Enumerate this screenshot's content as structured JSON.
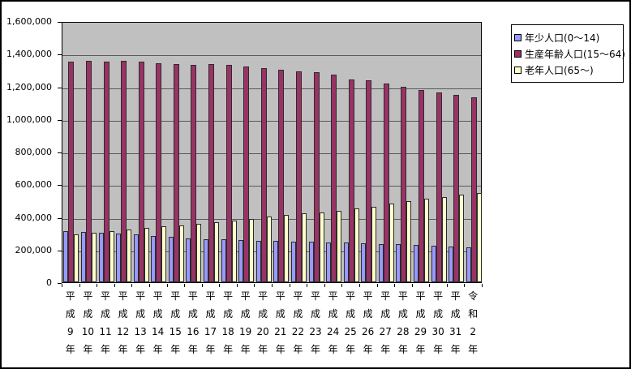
{
  "chart_data": {
    "type": "bar",
    "title": "",
    "xlabel": "",
    "ylabel": "",
    "grid": true,
    "plot_background": "#C0C0C0",
    "background": "#FFFFFF",
    "border_color": "#000000",
    "gridline_color": "#5A5A5A",
    "legend_position": "top-right",
    "categories": [
      "平成9年",
      "平成10年",
      "平成11年",
      "平成12年",
      "平成13年",
      "平成14年",
      "平成15年",
      "平成16年",
      "平成17年",
      "平成18年",
      "平成19年",
      "平成20年",
      "平成21年",
      "平成22年",
      "平成23年",
      "平成24年",
      "平成25年",
      "平成26年",
      "平成27年",
      "平成28年",
      "平成29年",
      "平成30年",
      "平成31年",
      "令和2年"
    ],
    "series": [
      {
        "name": "年少人口(0～14)",
        "color": "#9999FF",
        "values": [
          313000,
          309000,
          304000,
          300000,
          291000,
          284000,
          277000,
          270000,
          264000,
          261000,
          258000,
          255000,
          252000,
          250000,
          248000,
          245000,
          242000,
          239000,
          236000,
          232000,
          228000,
          224000,
          219000,
          212000
        ]
      },
      {
        "name": "生産年齢人口(15～64)",
        "color": "#993366",
        "values": [
          1350000,
          1357000,
          1354000,
          1359000,
          1352000,
          1344000,
          1339000,
          1334000,
          1336000,
          1330000,
          1322000,
          1312000,
          1301000,
          1291000,
          1286000,
          1271000,
          1243000,
          1236000,
          1216000,
          1196000,
          1180000,
          1162000,
          1147000,
          1132000
        ]
      },
      {
        "name": "老年人口(65～)",
        "color": "#FFFFCC",
        "values": [
          292000,
          304000,
          312000,
          322000,
          333000,
          342000,
          350000,
          358000,
          367000,
          376000,
          390000,
          402000,
          412000,
          421000,
          427000,
          437000,
          450000,
          462000,
          481000,
          497000,
          512000,
          524000,
          535000,
          545000
        ]
      }
    ],
    "y_axis": {
      "min": 0,
      "max": 1600000,
      "step": 200000,
      "tick_labels": [
        "0",
        "200,000",
        "400,000",
        "600,000",
        "800,000",
        "1,000,000",
        "1,200,000",
        "1,400,000",
        "1,600,000"
      ]
    }
  }
}
